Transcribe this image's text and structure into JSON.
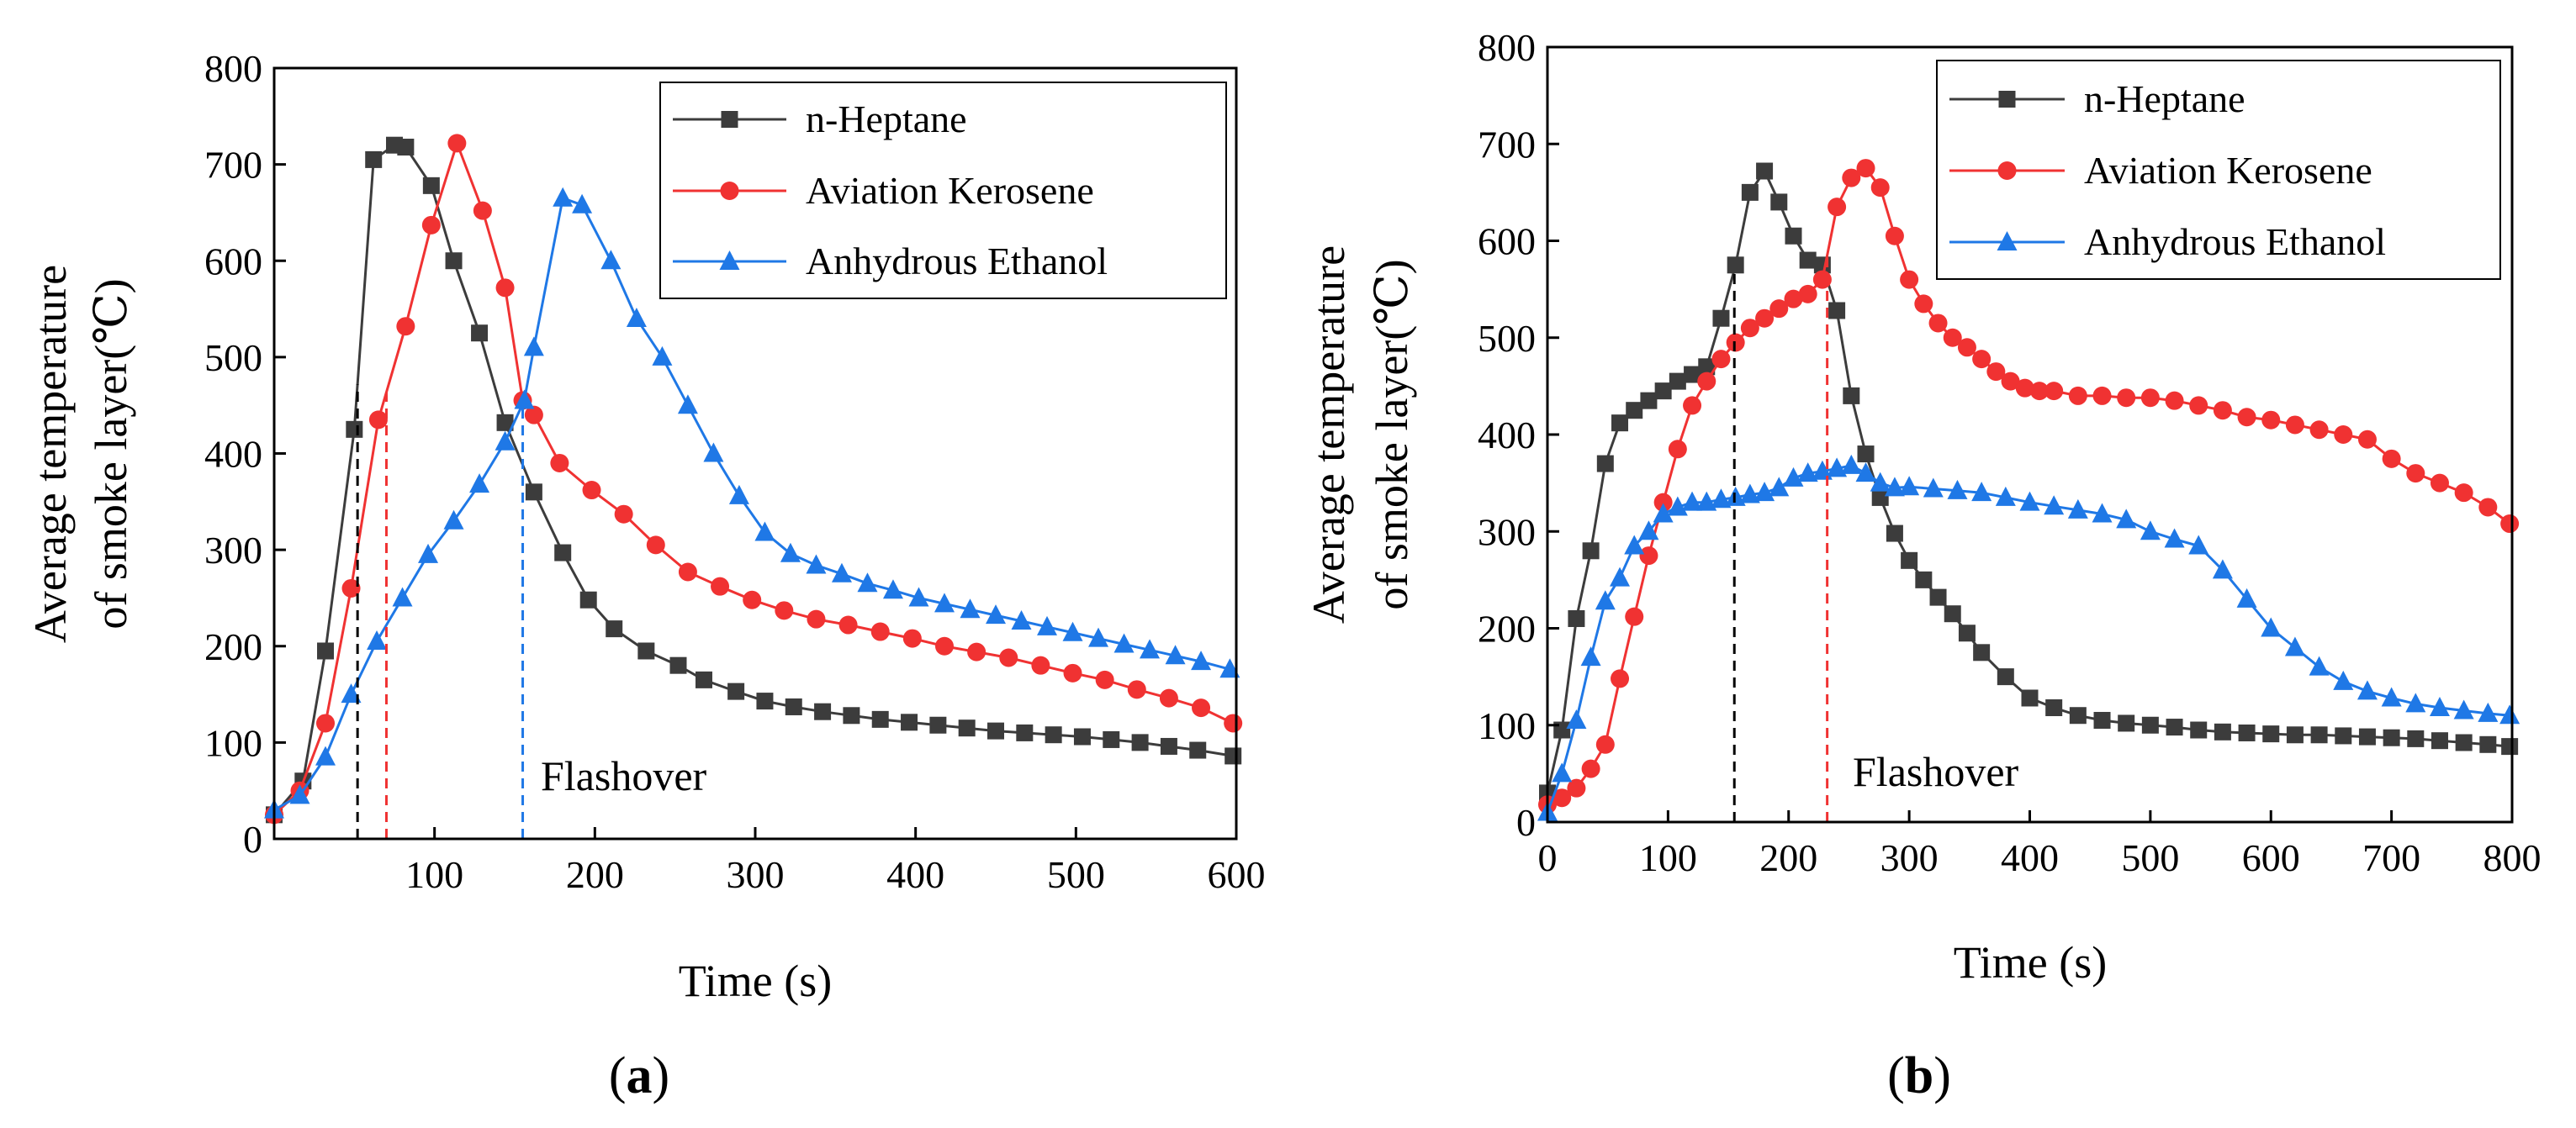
{
  "colors": {
    "n_heptane": "#3c3c3c",
    "aviation_kerosene": "#f03232",
    "anhydrous_ethanol": "#1f78e6"
  },
  "chart_data": [
    {
      "type": "line",
      "panel_label": "a",
      "xlabel": "Time (s)",
      "ylabel_line1": "Average temperature",
      "ylabel_line2": "of smoke layer(℃)",
      "xlim": [
        0,
        600
      ],
      "ylim": [
        0,
        800
      ],
      "xticks": [
        100,
        200,
        300,
        400,
        500,
        600
      ],
      "yticks": [
        0,
        100,
        200,
        300,
        400,
        500,
        600,
        700,
        800
      ],
      "legend_position": "top-right",
      "annotation": "Flashover",
      "flashover_lines": [
        {
          "series": "n-Heptane",
          "x": 52
        },
        {
          "series": "Aviation Kerosene",
          "x": 70
        },
        {
          "series": "Anhydrous Ethanol",
          "x": 155
        }
      ],
      "series": [
        {
          "name": "n-Heptane",
          "marker": "square",
          "x": [
            0,
            18,
            32,
            50,
            62,
            75,
            82,
            98,
            112,
            128,
            144,
            162,
            180,
            196,
            212,
            232,
            252,
            268,
            288,
            306,
            324,
            342,
            360,
            378,
            396,
            414,
            432,
            450,
            468,
            486,
            504,
            522,
            540,
            558,
            576,
            598
          ],
          "y": [
            25,
            60,
            195,
            425,
            705,
            720,
            718,
            678,
            600,
            525,
            432,
            360,
            297,
            248,
            218,
            195,
            180,
            165,
            153,
            143,
            137,
            132,
            128,
            124,
            121,
            118,
            115,
            112,
            110,
            108,
            106,
            103,
            100,
            96,
            92,
            86
          ]
        },
        {
          "name": "Aviation Kerosene",
          "marker": "circle",
          "x": [
            0,
            16,
            32,
            48,
            65,
            82,
            98,
            114,
            130,
            144,
            155,
            162,
            178,
            198,
            218,
            238,
            258,
            278,
            298,
            318,
            338,
            358,
            378,
            398,
            418,
            438,
            458,
            478,
            498,
            518,
            538,
            558,
            578,
            598
          ],
          "y": [
            25,
            50,
            120,
            260,
            435,
            532,
            637,
            722,
            652,
            572,
            455,
            440,
            390,
            362,
            337,
            305,
            277,
            262,
            248,
            237,
            228,
            222,
            215,
            208,
            200,
            194,
            188,
            180,
            172,
            165,
            155,
            146,
            136,
            120
          ]
        },
        {
          "name": "Anhydrous Ethanol",
          "marker": "triangle",
          "x": [
            0,
            16,
            32,
            48,
            64,
            80,
            96,
            112,
            128,
            144,
            156,
            162,
            180,
            192,
            210,
            226,
            242,
            258,
            274,
            290,
            306,
            322,
            338,
            354,
            370,
            386,
            402,
            418,
            434,
            450,
            466,
            482,
            498,
            514,
            530,
            546,
            562,
            578,
            596
          ],
          "y": [
            30,
            45,
            85,
            150,
            205,
            250,
            295,
            330,
            368,
            412,
            455,
            510,
            665,
            658,
            600,
            540,
            500,
            450,
            400,
            356,
            318,
            296,
            284,
            275,
            265,
            258,
            250,
            244,
            238,
            232,
            226,
            220,
            214,
            208,
            202,
            196,
            190,
            184,
            176
          ]
        }
      ]
    },
    {
      "type": "line",
      "panel_label": "b",
      "xlabel": "Time (s)",
      "ylabel_line1": "Average temperature",
      "ylabel_line2": "of smoke layer(℃)",
      "xlim": [
        0,
        800
      ],
      "ylim": [
        0,
        800
      ],
      "xticks": [
        0,
        100,
        200,
        300,
        400,
        500,
        600,
        700,
        800
      ],
      "yticks": [
        0,
        100,
        200,
        300,
        400,
        500,
        600,
        700,
        800
      ],
      "legend_position": "top-right",
      "annotation": "Flashover",
      "flashover_lines": [
        {
          "series": "n-Heptane",
          "x": 155
        },
        {
          "series": "Aviation Kerosene",
          "x": 232
        }
      ],
      "series": [
        {
          "name": "n-Heptane",
          "marker": "square",
          "x": [
            0,
            12,
            24,
            36,
            48,
            60,
            72,
            84,
            96,
            108,
            120,
            132,
            144,
            156,
            168,
            180,
            192,
            204,
            216,
            228,
            240,
            252,
            264,
            276,
            288,
            300,
            312,
            324,
            336,
            348,
            360,
            380,
            400,
            420,
            440,
            460,
            480,
            500,
            520,
            540,
            560,
            580,
            600,
            620,
            640,
            660,
            680,
            700,
            720,
            740,
            760,
            780,
            798
          ],
          "y": [
            30,
            95,
            210,
            280,
            370,
            412,
            425,
            435,
            445,
            455,
            462,
            470,
            520,
            575,
            650,
            672,
            640,
            605,
            580,
            575,
            528,
            440,
            380,
            335,
            298,
            270,
            250,
            232,
            215,
            195,
            175,
            150,
            128,
            118,
            110,
            105,
            102,
            100,
            98,
            95,
            93,
            92,
            91,
            90,
            90,
            89,
            88,
            87,
            86,
            84,
            82,
            80,
            78
          ]
        },
        {
          "name": "Aviation Kerosene",
          "marker": "circle",
          "x": [
            0,
            12,
            24,
            36,
            48,
            60,
            72,
            84,
            96,
            108,
            120,
            132,
            144,
            156,
            168,
            180,
            192,
            204,
            216,
            228,
            240,
            252,
            264,
            276,
            288,
            300,
            312,
            324,
            336,
            348,
            360,
            372,
            384,
            396,
            408,
            420,
            440,
            460,
            480,
            500,
            520,
            540,
            560,
            580,
            600,
            620,
            640,
            660,
            680,
            700,
            720,
            740,
            760,
            780,
            798
          ],
          "y": [
            18,
            25,
            35,
            55,
            80,
            148,
            212,
            275,
            330,
            385,
            430,
            455,
            478,
            495,
            510,
            520,
            530,
            540,
            545,
            560,
            635,
            665,
            675,
            655,
            605,
            560,
            535,
            515,
            500,
            490,
            478,
            465,
            455,
            448,
            445,
            445,
            440,
            440,
            438,
            438,
            435,
            430,
            425,
            418,
            415,
            410,
            405,
            400,
            395,
            375,
            360,
            350,
            340,
            325,
            308
          ]
        },
        {
          "name": "Anhydrous Ethanol",
          "marker": "triangle",
          "x": [
            0,
            12,
            24,
            36,
            48,
            60,
            72,
            84,
            96,
            108,
            120,
            132,
            144,
            156,
            168,
            180,
            192,
            204,
            216,
            228,
            240,
            252,
            264,
            276,
            288,
            300,
            320,
            340,
            360,
            380,
            400,
            420,
            440,
            460,
            480,
            500,
            520,
            540,
            560,
            580,
            600,
            620,
            640,
            660,
            680,
            700,
            720,
            740,
            760,
            780,
            798
          ],
          "y": [
            10,
            50,
            105,
            170,
            228,
            252,
            285,
            300,
            318,
            325,
            330,
            330,
            333,
            335,
            338,
            340,
            345,
            355,
            360,
            362,
            365,
            368,
            360,
            350,
            345,
            346,
            344,
            342,
            340,
            335,
            330,
            326,
            322,
            318,
            312,
            300,
            292,
            285,
            260,
            230,
            200,
            180,
            160,
            145,
            135,
            128,
            122,
            118,
            115,
            112,
            110
          ]
        }
      ]
    }
  ]
}
